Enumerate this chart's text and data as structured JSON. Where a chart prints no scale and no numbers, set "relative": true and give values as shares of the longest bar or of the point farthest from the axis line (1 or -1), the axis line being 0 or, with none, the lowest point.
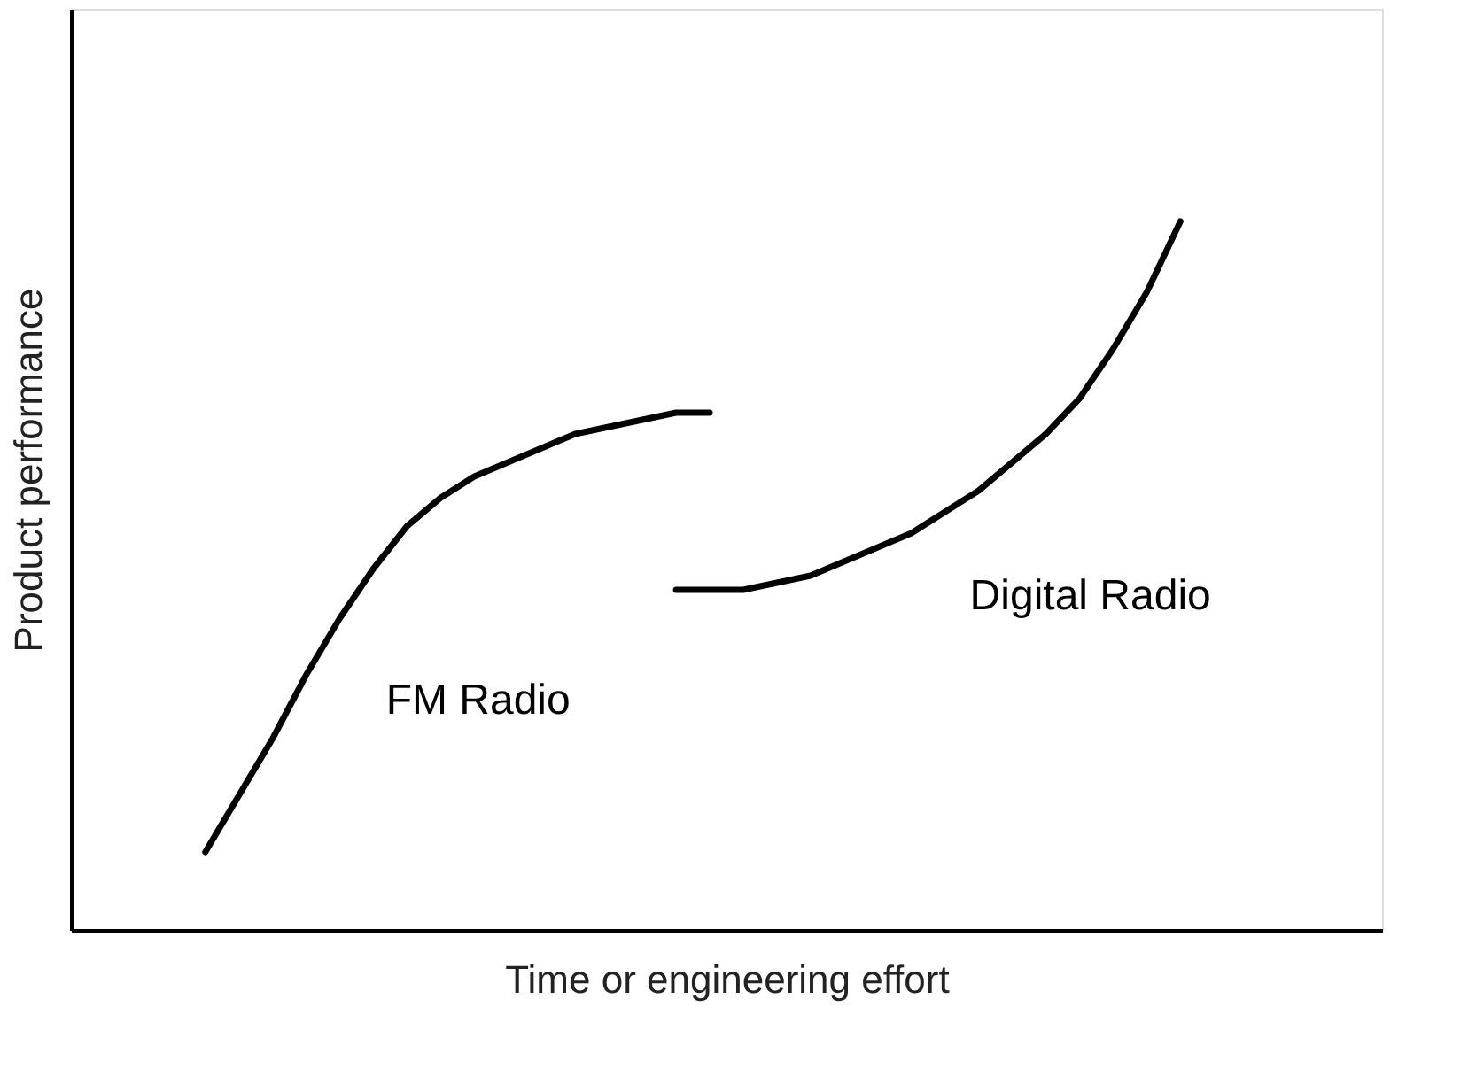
{
  "chart_data": {
    "type": "line",
    "relative": true,
    "xlabel": "Time or engineering effort",
    "ylabel": "Product performance",
    "categories": [
      null,
      null,
      null,
      null,
      null,
      null,
      null,
      null,
      null,
      null,
      null,
      null,
      null,
      null,
      null,
      null,
      null,
      null,
      null,
      null,
      null,
      null,
      null,
      null,
      null,
      null,
      null,
      null,
      null,
      null
    ],
    "series": [
      {
        "name": "FM Radio",
        "color": "#000000",
        "values": [
          0.11,
          0.19,
          0.27,
          0.36,
          0.44,
          0.51,
          0.57,
          0.61,
          0.64,
          0.66,
          0.68,
          0.7,
          0.71,
          0.72,
          0.73,
          0.73,
          null,
          null,
          null,
          null,
          null,
          null,
          null,
          null,
          null,
          null,
          null,
          null,
          null,
          null
        ]
      },
      {
        "name": "Digital Radio",
        "color": "#000000",
        "values": [
          null,
          null,
          null,
          null,
          null,
          null,
          null,
          null,
          null,
          null,
          null,
          null,
          null,
          null,
          0.48,
          0.48,
          0.48,
          0.49,
          0.5,
          0.52,
          0.54,
          0.56,
          0.59,
          0.62,
          0.66,
          0.7,
          0.75,
          0.82,
          0.9,
          1.0
        ]
      }
    ]
  }
}
